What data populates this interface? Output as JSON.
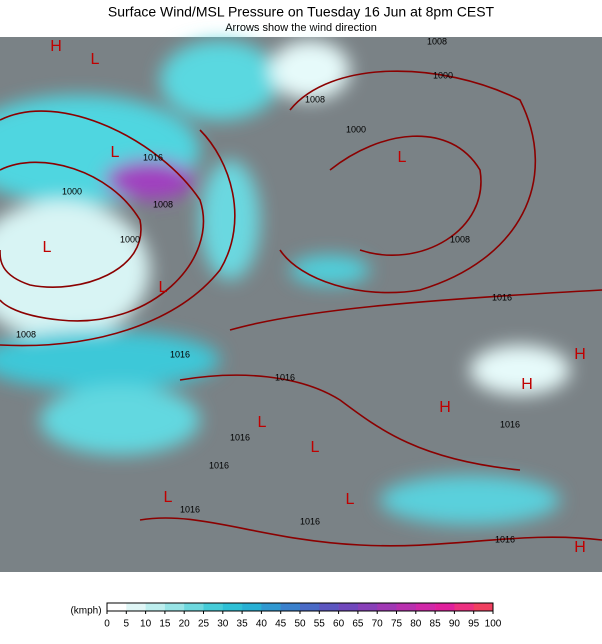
{
  "header": {
    "title": "Surface Wind/MSL Pressure on Tuesday 16 Jun at 8pm CEST",
    "subtitle": "Arrows show the wind direction"
  },
  "map": {
    "isobar_labels": [
      "1008",
      "1000",
      "1008",
      "1000",
      "1016",
      "1000",
      "1008",
      "1000",
      "1008",
      "1016",
      "1008",
      "1016",
      "1016",
      "1016",
      "1016",
      "1016",
      "1016",
      "1016",
      "1016"
    ],
    "pressure_centers": [
      "L",
      "L",
      "L",
      "L",
      "L",
      "L",
      "L",
      "L",
      "L",
      "H",
      "H",
      "H",
      "H",
      "H"
    ]
  },
  "colorbar": {
    "unit": "(kmph)",
    "lim": [
      0,
      100
    ],
    "ticks": [
      0,
      5,
      10,
      15,
      20,
      25,
      30,
      35,
      40,
      45,
      50,
      55,
      60,
      65,
      70,
      75,
      80,
      85,
      90,
      95,
      100
    ],
    "colors": [
      "#ffffff",
      "#e0f6f6",
      "#bdeeee",
      "#98e4e6",
      "#6ed8de",
      "#46ccd8",
      "#2ec0d6",
      "#28b0d4",
      "#3098d0",
      "#3a80cc",
      "#4a6ac6",
      "#5c56c0",
      "#7048bc",
      "#8840b8",
      "#a038b4",
      "#b830ae",
      "#d028a8",
      "#e0209c",
      "#ec3080",
      "#f04060"
    ]
  }
}
